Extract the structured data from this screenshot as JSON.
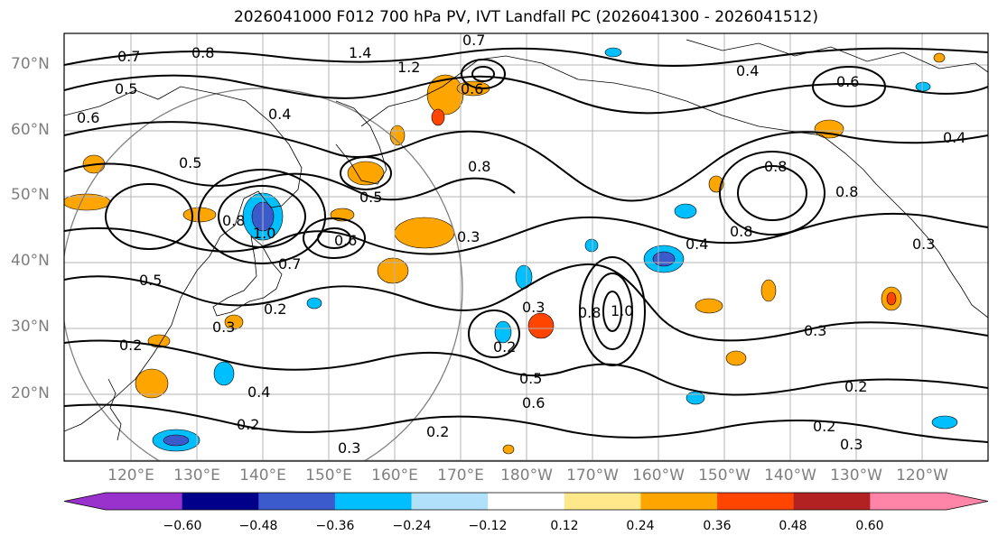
{
  "title": "2026041000 F012 700 hPa PV, IVT Landfall PC (2026041300 - 2026041512)",
  "lat_labels": [
    "70°N",
    "60°N",
    "50°N",
    "40°N",
    "30°N",
    "20°N"
  ],
  "lon_labels": [
    "120°E",
    "130°E",
    "140°E",
    "150°E",
    "160°E",
    "170°E",
    "180°W",
    "170°W",
    "160°W",
    "150°W",
    "140°W",
    "130°W",
    "120°W"
  ],
  "contour_labels": [
    "0.7",
    "0.8",
    "1.4",
    "1.2",
    "0.7",
    "0.5",
    "0.6",
    "0.4",
    "0.6",
    "0.4",
    "0.5",
    "0.8",
    "0.5",
    "0.8",
    "1.0",
    "0.6",
    "0.7",
    "0.3",
    "0.5",
    "0.6",
    "0.8",
    "0.8",
    "0.8",
    "0.2",
    "0.3",
    "0.4",
    "0.2",
    "0.3",
    "0.2",
    "0.3",
    "0.5",
    "0.6",
    "0.2",
    "0.3",
    "0.2",
    "1.0",
    "0.8",
    "0.4",
    "0.3",
    "0.2",
    "0.3",
    "0.2",
    "0.4"
  ],
  "colorbar": {
    "ticks": [
      "−0.60",
      "−0.48",
      "−0.36",
      "−0.24",
      "−0.12",
      "0.12",
      "0.24",
      "0.36",
      "0.48",
      "0.60"
    ],
    "colors": [
      "#9932cc",
      "#00008b",
      "#3b5bcd",
      "#00bfff",
      "#b0e0fa",
      "#ffffff",
      "#ffe88a",
      "#ffa500",
      "#ff4500",
      "#b22222",
      "#ff85a8"
    ]
  }
}
